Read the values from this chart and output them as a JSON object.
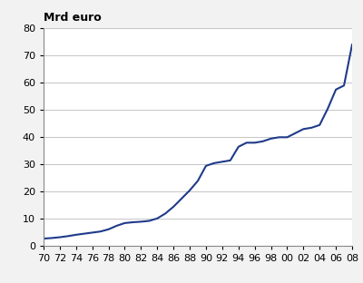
{
  "title": "Mrd euro",
  "background_color": "#f2f2f2",
  "plot_background": "#ffffff",
  "line_color": "#1f3a8a",
  "line_width": 1.5,
  "ylim": [
    0,
    80
  ],
  "yticks": [
    0,
    10,
    20,
    30,
    40,
    50,
    60,
    70,
    80
  ],
  "xtick_labels": [
    "70",
    "72",
    "74",
    "76",
    "78",
    "80",
    "82",
    "84",
    "86",
    "88",
    "90",
    "92",
    "94",
    "96",
    "98",
    "00",
    "02",
    "04",
    "06",
    "08"
  ],
  "xlim": [
    1970,
    2008
  ],
  "years": [
    1970,
    1971,
    1972,
    1973,
    1974,
    1975,
    1976,
    1977,
    1978,
    1979,
    1980,
    1981,
    1982,
    1983,
    1984,
    1985,
    1986,
    1987,
    1988,
    1989,
    1990,
    1991,
    1992,
    1993,
    1994,
    1995,
    1996,
    1997,
    1998,
    1999,
    2000,
    2001,
    2002,
    2003,
    2004,
    2005,
    2006,
    2007,
    2008
  ],
  "values": [
    2.8,
    3.0,
    3.3,
    3.7,
    4.2,
    4.6,
    5.0,
    5.4,
    6.2,
    7.5,
    8.5,
    8.8,
    9.0,
    9.3,
    10.2,
    12.0,
    14.5,
    17.5,
    20.5,
    24.0,
    29.5,
    30.5,
    31.0,
    31.5,
    36.5,
    38.0,
    38.0,
    38.5,
    39.5,
    40.0,
    40.0,
    41.5,
    43.0,
    43.5,
    44.5,
    50.5,
    57.5,
    59.0,
    74.0
  ],
  "title_fontsize": 9,
  "tick_fontsize": 8,
  "grid_color": "#bbbbbb",
  "grid_linewidth": 0.6
}
